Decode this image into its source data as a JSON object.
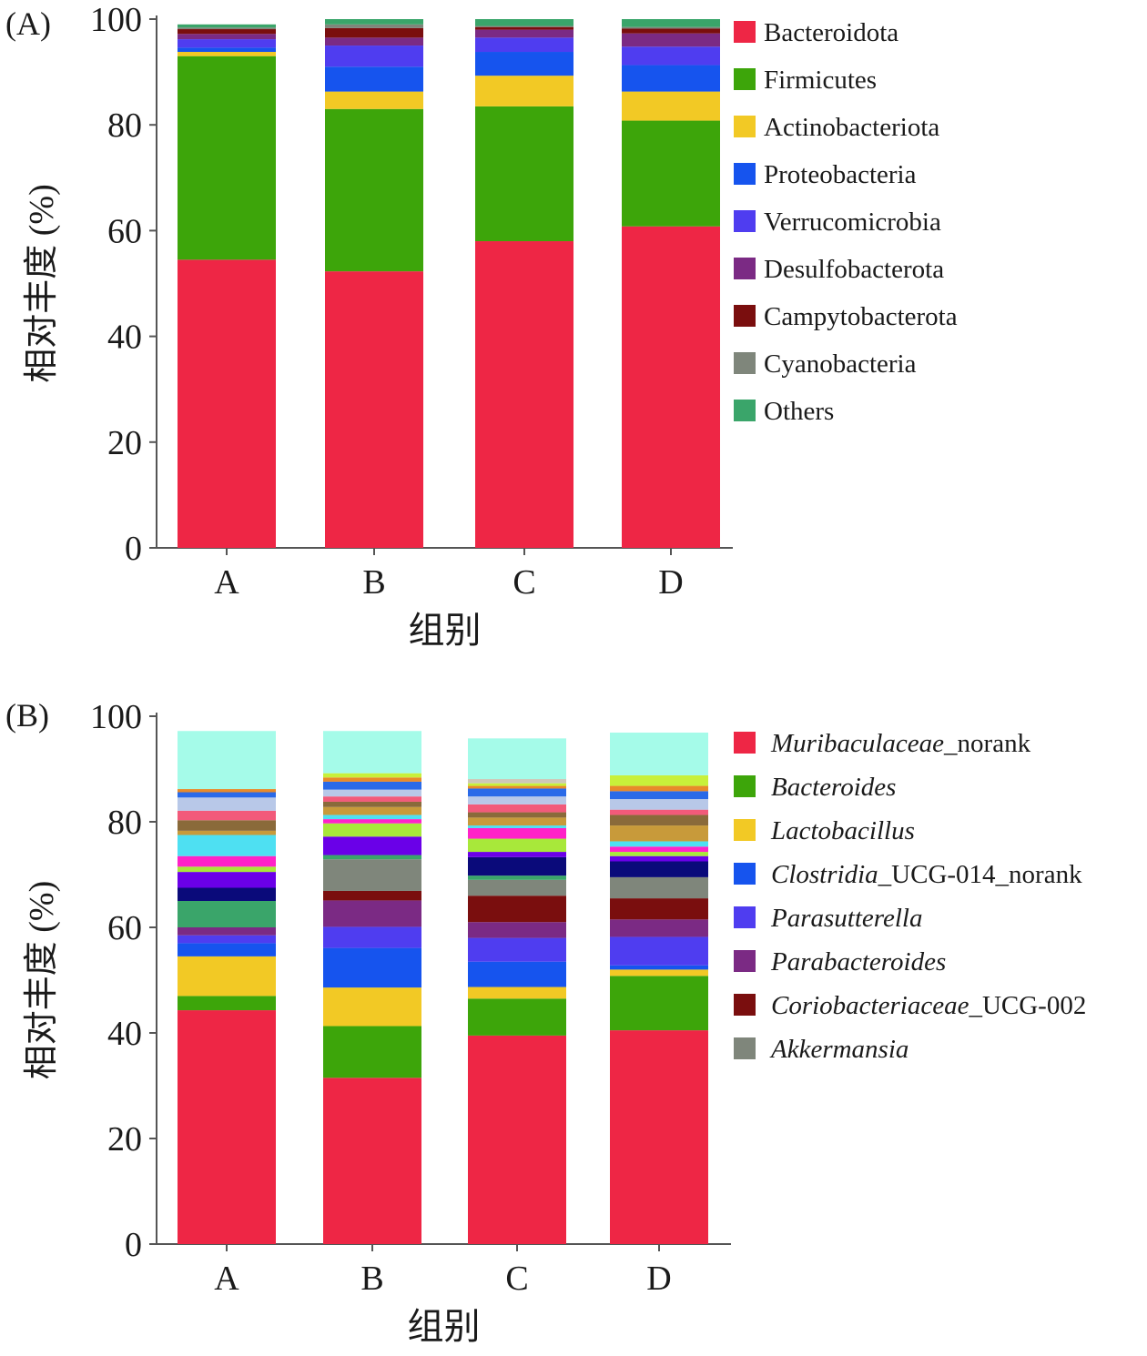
{
  "chart_data": [
    {
      "panel_label": "(A)",
      "type": "bar",
      "stacked": true,
      "xlabel": "组别",
      "ylabel": "相对丰度 (%)",
      "ylim": [
        0,
        100
      ],
      "yticks": [
        0,
        20,
        40,
        60,
        80,
        100
      ],
      "categories": [
        "A",
        "B",
        "C",
        "D"
      ],
      "legend_position": "right",
      "series": [
        {
          "name": "Bacteroidota",
          "color": "#ee2645",
          "values": [
            54.5,
            52.3,
            58.0,
            60.8
          ]
        },
        {
          "name": "Firmicutes",
          "color": "#3da50a",
          "values": [
            38.5,
            30.7,
            25.5,
            20.0
          ]
        },
        {
          "name": "Actinobacteriota",
          "color": "#f2c925",
          "values": [
            0.8,
            3.3,
            5.8,
            5.5
          ]
        },
        {
          "name": "Proteobacteria",
          "color": "#1654ee",
          "values": [
            0.8,
            4.7,
            4.5,
            5.0
          ]
        },
        {
          "name": "Verrucomicrobia",
          "color": "#4f3df0",
          "values": [
            1.6,
            4.0,
            2.7,
            3.5
          ]
        },
        {
          "name": "Desulfobacterota",
          "color": "#7b2a84",
          "values": [
            1.0,
            1.5,
            1.5,
            2.5
          ]
        },
        {
          "name": "Campytobacterota",
          "color": "#7a0e0e",
          "values": [
            0.9,
            1.8,
            0.5,
            0.9
          ]
        },
        {
          "name": "Cyanobacteria",
          "color": "#7f867b",
          "values": [
            0.3,
            0.7,
            0.2,
            0.3
          ]
        },
        {
          "name": "Others",
          "color": "#3aa56a",
          "values": [
            0.6,
            1.0,
            1.3,
            1.5
          ]
        }
      ]
    },
    {
      "panel_label": "(B)",
      "type": "bar",
      "stacked": true,
      "xlabel": "组别",
      "ylabel": "相对丰度 (%)",
      "ylim": [
        0,
        100
      ],
      "yticks": [
        0,
        20,
        40,
        60,
        80,
        100
      ],
      "categories": [
        "A",
        "B",
        "C",
        "D"
      ],
      "legend_position": "right",
      "series": [
        {
          "name_italic": "Muribaculaceae",
          "name_suffix": "_norank",
          "color": "#ee2645",
          "values": [
            44.3,
            31.5,
            39.5,
            40.5
          ]
        },
        {
          "name_italic": "Bacteroides",
          "name_suffix": "",
          "color": "#3da50a",
          "values": [
            2.7,
            9.8,
            7.0,
            10.3
          ]
        },
        {
          "name_italic": "Lactobacillus",
          "name_suffix": "",
          "color": "#f2c925",
          "values": [
            7.5,
            7.3,
            2.2,
            1.2
          ]
        },
        {
          "name_italic": "Clostridia",
          "name_suffix": "_UCG-014_norank",
          "color": "#1654ee",
          "values": [
            2.5,
            7.5,
            4.8,
            0.8
          ]
        },
        {
          "name_italic": "Parasutterella",
          "name_suffix": "",
          "color": "#4f3df0",
          "values": [
            1.5,
            4.0,
            4.5,
            5.4
          ]
        },
        {
          "name_italic": "Parabacteroides",
          "name_suffix": "",
          "color": "#7b2a84",
          "values": [
            1.5,
            5.0,
            3.0,
            3.3
          ]
        },
        {
          "name_italic": "Coriobacteriaceae",
          "name_suffix": "_UCG-002",
          "color": "#7a0e0e",
          "values": [
            0.0,
            1.8,
            5.0,
            4.0
          ]
        },
        {
          "name_italic": "Akkermansia",
          "name_suffix": "",
          "color": "#7f867b",
          "values": [
            0.0,
            6.0,
            3.0,
            4.0
          ]
        },
        {
          "color": "#3aa56a",
          "values": [
            5.0,
            0.8,
            0.8,
            0.0
          ]
        },
        {
          "color": "#0a0a7a",
          "values": [
            2.5,
            0.0,
            3.5,
            3.0
          ]
        },
        {
          "color": "#6a00e8",
          "values": [
            3.0,
            3.5,
            1.0,
            1.0
          ]
        },
        {
          "color": "#a8e83a",
          "values": [
            1.0,
            2.5,
            2.5,
            0.8
          ]
        },
        {
          "color": "#ff22c8",
          "values": [
            2.0,
            0.8,
            2.0,
            1.0
          ]
        },
        {
          "color": "#4ee0f2",
          "values": [
            4.0,
            0.8,
            0.5,
            1.0
          ]
        },
        {
          "color": "#c89a3a",
          "values": [
            0.8,
            1.5,
            1.5,
            3.0
          ]
        },
        {
          "color": "#8a6a3a",
          "values": [
            2.0,
            1.0,
            1.0,
            2.0
          ]
        },
        {
          "color": "#f25a7a",
          "values": [
            1.8,
            1.0,
            1.5,
            1.0
          ]
        },
        {
          "color": "#b8c8e8",
          "values": [
            2.5,
            1.3,
            1.5,
            2.0
          ]
        },
        {
          "color": "#2a6ae8",
          "values": [
            1.0,
            1.5,
            1.5,
            1.5
          ]
        },
        {
          "color": "#e88a2a",
          "values": [
            0.6,
            0.8,
            0.5,
            1.0
          ]
        },
        {
          "color": "#c8f03a",
          "values": [
            0.0,
            0.8,
            0.5,
            2.0
          ]
        },
        {
          "color": "#cfc8b8",
          "values": [
            0.0,
            0.0,
            0.8,
            0.0
          ]
        },
        {
          "color": "#a5fbe9",
          "values": [
            11.0,
            8.0,
            7.7,
            8.1
          ]
        }
      ]
    }
  ]
}
